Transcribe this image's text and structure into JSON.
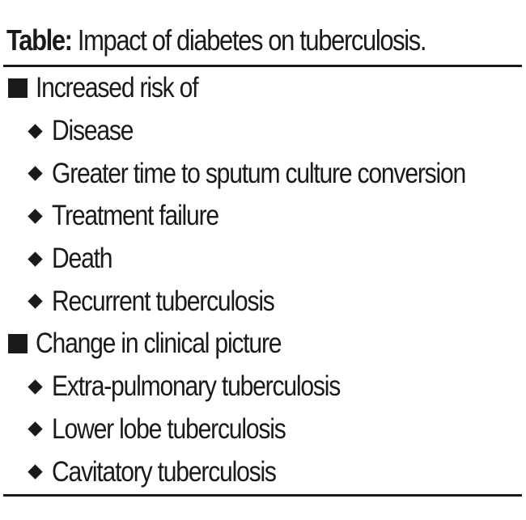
{
  "caption": {
    "label": "Table:",
    "text": "Impact of diabetes on tuberculosis."
  },
  "groups": [
    {
      "heading": "Increased risk of",
      "items": [
        "Disease",
        "Greater time to sputum culture conversion",
        "Treatment failure",
        "Death",
        "Recurrent tuberculosis"
      ]
    },
    {
      "heading": "Change in clinical picture",
      "items": [
        "Extra-pulmonary tuberculosis",
        "Lower lobe tuberculosis",
        "Cavitatory tuberculosis"
      ]
    }
  ]
}
